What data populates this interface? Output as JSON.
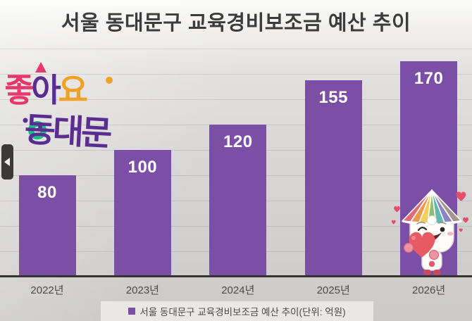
{
  "slide": {
    "title": "서울 동대문구 교육경비보조금 예산 추이"
  },
  "logo": {
    "char1": "좋",
    "char2": "아",
    "char3": "요",
    "line2": "동대문",
    "colors": {
      "pink": "#e7386e",
      "purple": "#5b2d90",
      "yellow": "#f0a226",
      "green": "#1abd8c"
    }
  },
  "icons": {
    "prev": "left-triangle"
  },
  "chart_data": {
    "type": "bar",
    "title": "서울 동대문구 교육경비보조금 예산 추이",
    "categories": [
      "2022년",
      "2023년",
      "2024년",
      "2025년",
      "2026년"
    ],
    "values": [
      80,
      100,
      120,
      155,
      170
    ],
    "unit": "억원",
    "legend_label": "서울 동대문구 교육경비보조금 예산 추이(단위: 억원)",
    "legend_position": "bottom",
    "xlabel": "",
    "ylabel": "",
    "ylim": [
      0,
      180
    ],
    "grid": true,
    "grid_step": 20,
    "bar_color": "#7b4fa5",
    "value_label_color": "#ffffff",
    "axis_color": "#343434"
  }
}
